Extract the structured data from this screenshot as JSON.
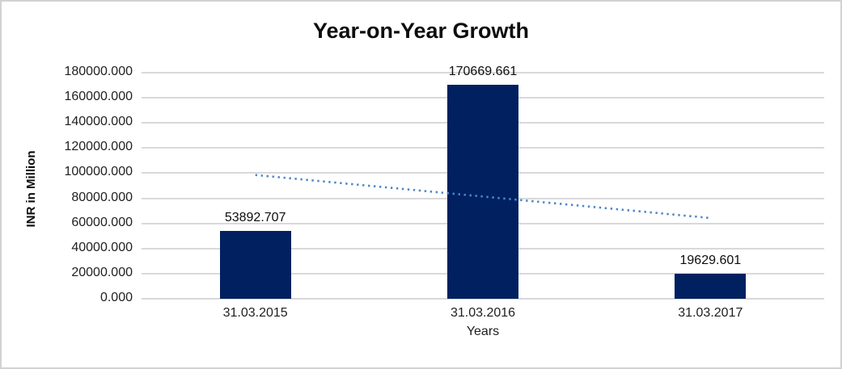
{
  "chart_data": {
    "type": "bar",
    "title": "Year-on-Year Growth",
    "xlabel": "Years",
    "ylabel": "INR in Million",
    "categories": [
      "31.03.2015",
      "31.03.2016",
      "31.03.2017"
    ],
    "values": [
      53892.707,
      170669.661,
      19629.601
    ],
    "data_labels": [
      "53892.707",
      "170669.661",
      "19629.601"
    ],
    "ylim": [
      0,
      180000
    ],
    "y_tick_step": 20000,
    "y_ticks": [
      "180000.000",
      "160000.000",
      "140000.000",
      "120000.000",
      "100000.000",
      "80000.000",
      "60000.000",
      "40000.000",
      "20000.000",
      "0.000"
    ],
    "grid": "horizontal",
    "legend": "none",
    "trendline": {
      "type": "linear",
      "style": "dotted",
      "start_value": 98528.91,
      "end_value": 64265.8
    },
    "colors": {
      "bar": "#002060",
      "trendline": "#4e86c8",
      "gridline": "#d9d9d9",
      "text": "#0d0d0d"
    }
  }
}
